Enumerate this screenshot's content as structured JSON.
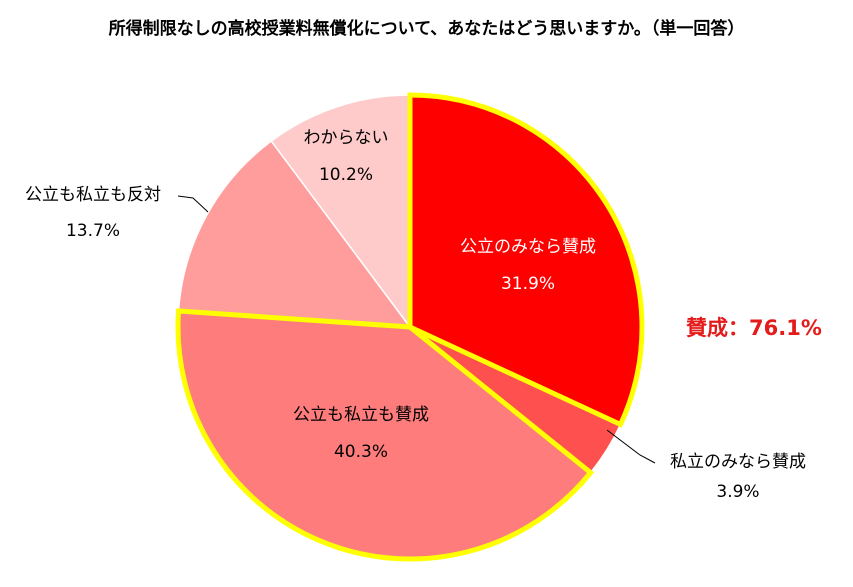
{
  "chart_data": {
    "type": "pie",
    "title": "所得制限なしの高校授業料無償化について、あなたはどう思いますか。（単一回答）",
    "slices": [
      {
        "label": "公立のみなら賛成",
        "value": 31.9,
        "value_text": "31.9%",
        "color": "#ff0000",
        "text_color": "#ffffff"
      },
      {
        "label": "私立のみなら賛成",
        "value": 3.9,
        "value_text": "3.9%",
        "color": "#ff5050",
        "text_color": "#000000"
      },
      {
        "label": "公立も私立も賛成",
        "value": 40.3,
        "value_text": "40.3%",
        "color": "#ff7c7c",
        "text_color": "#000000"
      },
      {
        "label": "公立も私立も反対",
        "value": 13.7,
        "value_text": "13.7%",
        "color": "#ff9d9d",
        "text_color": "#000000"
      },
      {
        "label": "わからない",
        "value": 10.2,
        "value_text": "10.2%",
        "color": "#ffcaca",
        "text_color": "#000000"
      }
    ],
    "highlight_color": "#ffff00",
    "annotation": "賛成：76.1%"
  }
}
